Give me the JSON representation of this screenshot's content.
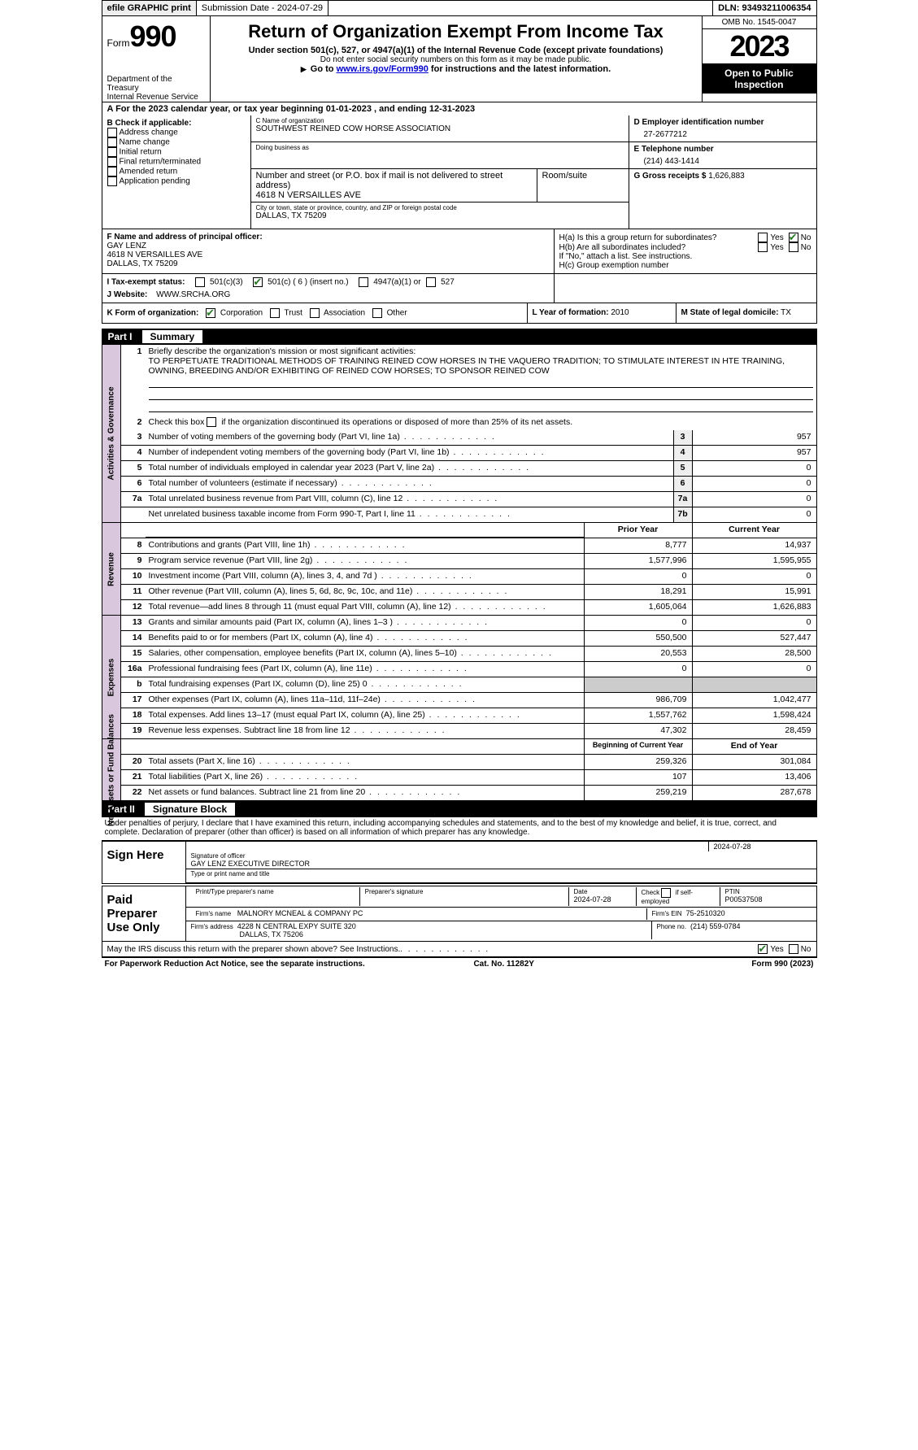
{
  "topbar": {
    "efile": "efile GRAPHIC print",
    "submission": "Submission Date - 2024-07-29",
    "dln": "DLN: 93493211006354"
  },
  "header": {
    "form_label": "Form",
    "form_num": "990",
    "title": "Return of Organization Exempt From Income Tax",
    "sub1": "Under section 501(c), 527, or 4947(a)(1) of the Internal Revenue Code (except private foundations)",
    "sub2": "Do not enter social security numbers on this form as it may be made public.",
    "sub3_pre": "Go to ",
    "sub3_link": "www.irs.gov/Form990",
    "sub3_post": " for instructions and the latest information.",
    "dept1": "Department of the Treasury",
    "dept2": "Internal Revenue Service",
    "omb": "OMB No. 1545-0047",
    "year": "2023",
    "open": "Open to Public Inspection"
  },
  "line_a": "A For the 2023 calendar year, or tax year beginning 01-01-2023   , and ending 12-31-2023",
  "box_b": {
    "label": "B Check if applicable:",
    "items": [
      "Address change",
      "Name change",
      "Initial return",
      "Final return/terminated",
      "Amended return",
      "Application pending"
    ]
  },
  "box_c": {
    "name_lbl": "C Name of organization",
    "name": "SOUTHWEST REINED COW HORSE ASSOCIATION",
    "dba_lbl": "Doing business as",
    "dba": "",
    "street_lbl": "Number and street (or P.O. box if mail is not delivered to street address)",
    "street": "4618 N VERSAILLES AVE",
    "room_lbl": "Room/suite",
    "room": "",
    "city_lbl": "City or town, state or province, country, and ZIP or foreign postal code",
    "city": "DALLAS, TX  75209"
  },
  "box_d": {
    "ein_lbl": "D Employer identification number",
    "ein": "27-2677212",
    "tel_lbl": "E Telephone number",
    "tel": "(214) 443-1414",
    "gross_lbl": "G Gross receipts $",
    "gross": "1,626,883"
  },
  "box_f": {
    "lbl": "F  Name and address of principal officer:",
    "name": "GAY LENZ",
    "street": "4618 N VERSAILLES AVE",
    "city": "DALLAS, TX  75209"
  },
  "box_h": {
    "ha": "H(a)  Is this a group return for subordinates?",
    "hb": "H(b)  Are all subordinates included?",
    "hb_note": "If \"No,\" attach a list. See instructions.",
    "hc": "H(c)  Group exemption number",
    "yes": "Yes",
    "no": "No"
  },
  "box_i": {
    "lbl": "I    Tax-exempt status:",
    "o1": "501(c)(3)",
    "o2": "501(c) ( 6 ) (insert no.)",
    "o3": "4947(a)(1) or",
    "o4": "527"
  },
  "box_j": {
    "lbl": "J   Website:",
    "val": "WWW.SRCHA.ORG"
  },
  "box_k": {
    "lbl": "K Form of organization:",
    "o1": "Corporation",
    "o2": "Trust",
    "o3": "Association",
    "o4": "Other"
  },
  "box_l": {
    "lbl": "L Year of formation:",
    "val": "2010"
  },
  "box_m": {
    "lbl": "M State of legal domicile:",
    "val": "TX"
  },
  "part1": {
    "num": "Part I",
    "title": "Summary"
  },
  "mission": {
    "lbl": "Briefly describe the organization's mission or most significant activities:",
    "text": "TO PERPETUATE TRADITIONAL METHODS OF TRAINING REINED COW HORSES IN THE VAQUERO TRADITION; TO STIMULATE INTEREST IN HTE TRAINING, OWNING, BREEDING AND/OR EXHIBITING OF REINED COW HORSES; TO SPONSOR REINED COW"
  },
  "line2": "Check this box      if the organization discontinued its operations or disposed of more than 25% of its net assets.",
  "gov_rows": [
    {
      "n": "3",
      "d": "Number of voting members of the governing body (Part VI, line 1a)",
      "b": "3",
      "v": "957"
    },
    {
      "n": "4",
      "d": "Number of independent voting members of the governing body (Part VI, line 1b)",
      "b": "4",
      "v": "957"
    },
    {
      "n": "5",
      "d": "Total number of individuals employed in calendar year 2023 (Part V, line 2a)",
      "b": "5",
      "v": "0"
    },
    {
      "n": "6",
      "d": "Total number of volunteers (estimate if necessary)",
      "b": "6",
      "v": "0"
    },
    {
      "n": "7a",
      "d": "Total unrelated business revenue from Part VIII, column (C), line 12",
      "b": "7a",
      "v": "0"
    },
    {
      "n": "",
      "d": "Net unrelated business taxable income from Form 990-T, Part I, line 11",
      "b": "7b",
      "v": "0"
    }
  ],
  "rev_hdr": {
    "c1": "Prior Year",
    "c2": "Current Year"
  },
  "rev_rows": [
    {
      "n": "8",
      "d": "Contributions and grants (Part VIII, line 1h)",
      "p": "8,777",
      "c": "14,937"
    },
    {
      "n": "9",
      "d": "Program service revenue (Part VIII, line 2g)",
      "p": "1,577,996",
      "c": "1,595,955"
    },
    {
      "n": "10",
      "d": "Investment income (Part VIII, column (A), lines 3, 4, and 7d )",
      "p": "0",
      "c": "0"
    },
    {
      "n": "11",
      "d": "Other revenue (Part VIII, column (A), lines 5, 6d, 8c, 9c, 10c, and 11e)",
      "p": "18,291",
      "c": "15,991"
    },
    {
      "n": "12",
      "d": "Total revenue—add lines 8 through 11 (must equal Part VIII, column (A), line 12)",
      "p": "1,605,064",
      "c": "1,626,883"
    }
  ],
  "exp_rows": [
    {
      "n": "13",
      "d": "Grants and similar amounts paid (Part IX, column (A), lines 1–3 )",
      "p": "0",
      "c": "0"
    },
    {
      "n": "14",
      "d": "Benefits paid to or for members (Part IX, column (A), line 4)",
      "p": "550,500",
      "c": "527,447"
    },
    {
      "n": "15",
      "d": "Salaries, other compensation, employee benefits (Part IX, column (A), lines 5–10)",
      "p": "20,553",
      "c": "28,500"
    },
    {
      "n": "16a",
      "d": "Professional fundraising fees (Part IX, column (A), line 11e)",
      "p": "0",
      "c": "0"
    },
    {
      "n": "b",
      "d": "Total fundraising expenses (Part IX, column (D), line 25) 0",
      "p": "",
      "c": "",
      "grey": true
    },
    {
      "n": "17",
      "d": "Other expenses (Part IX, column (A), lines 11a–11d, 11f–24e)",
      "p": "986,709",
      "c": "1,042,477"
    },
    {
      "n": "18",
      "d": "Total expenses. Add lines 13–17 (must equal Part IX, column (A), line 25)",
      "p": "1,557,762",
      "c": "1,598,424"
    },
    {
      "n": "19",
      "d": "Revenue less expenses. Subtract line 18 from line 12",
      "p": "47,302",
      "c": "28,459"
    }
  ],
  "net_hdr": {
    "c1": "Beginning of Current Year",
    "c2": "End of Year"
  },
  "net_rows": [
    {
      "n": "20",
      "d": "Total assets (Part X, line 16)",
      "p": "259,326",
      "c": "301,084"
    },
    {
      "n": "21",
      "d": "Total liabilities (Part X, line 26)",
      "p": "107",
      "c": "13,406"
    },
    {
      "n": "22",
      "d": "Net assets or fund balances. Subtract line 21 from line 20",
      "p": "259,219",
      "c": "287,678"
    }
  ],
  "vtabs": {
    "gov": "Activities & Governance",
    "rev": "Revenue",
    "exp": "Expenses",
    "net": "Net Assets or Fund Balances"
  },
  "part2": {
    "num": "Part II",
    "title": "Signature Block"
  },
  "perjury": "Under penalties of perjury, I declare that I have examined this return, including accompanying schedules and statements, and to the best of my knowledge and belief, it is true, correct, and complete. Declaration of preparer (other than officer) is based on all information of which preparer has any knowledge.",
  "sign": {
    "label": "Sign Here",
    "date": "2024-07-28",
    "sig_lbl": "Signature of officer",
    "officer": "GAY LENZ  EXECUTIVE DIRECTOR",
    "name_lbl": "Type or print name and title",
    "date_lbl": "Date"
  },
  "paid": {
    "label": "Paid Preparer Use Only",
    "prep_name_lbl": "Print/Type preparer's name",
    "prep_sig_lbl": "Preparer's signature",
    "date_lbl": "Date",
    "date": "2024-07-28",
    "check_lbl": "Check        if self-employed",
    "ptin_lbl": "PTIN",
    "ptin": "P00537508",
    "firm_name_lbl": "Firm's name",
    "firm_name": "MALNORY MCNEAL & COMPANY PC",
    "firm_ein_lbl": "Firm's EIN",
    "firm_ein": "75-2510320",
    "firm_addr_lbl": "Firm's address",
    "firm_addr1": "4228 N CENTRAL EXPY SUITE 320",
    "firm_addr2": "DALLAS, TX  75206",
    "phone_lbl": "Phone no.",
    "phone": "(214) 559-0784"
  },
  "discuss": {
    "q": "May the IRS discuss this return with the preparer shown above? See Instructions.",
    "yes": "Yes",
    "no": "No"
  },
  "footer": {
    "left": "For Paperwork Reduction Act Notice, see the separate instructions.",
    "mid": "Cat. No. 11282Y",
    "right": "Form 990 (2023)"
  },
  "colors": {
    "vtab_bg": "#d9c7dd",
    "check_green": "#2a7a2a"
  }
}
